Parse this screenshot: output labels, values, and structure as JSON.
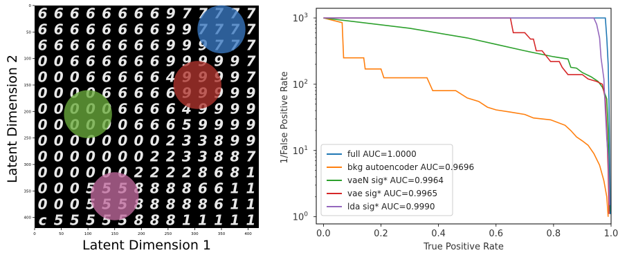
{
  "chart_data": [
    {
      "type": "scatter",
      "xlabel": "Latent Dimension 1",
      "ylabel": "Latent Dimension 2",
      "x_ticks": [
        0,
        50,
        100,
        150,
        200,
        250,
        300,
        350,
        400
      ],
      "y_ticks": [
        0,
        50,
        100,
        150,
        200,
        250,
        300,
        350,
        400
      ],
      "xlim": [
        0,
        420
      ],
      "ylim": [
        420,
        0
      ],
      "digit_grid": [
        [
          "6",
          "6",
          "6",
          "6",
          "6",
          "6",
          "6",
          "6",
          "9",
          "7",
          "7",
          "7",
          "7",
          "7"
        ],
        [
          "6",
          "6",
          "6",
          "6",
          "6",
          "6",
          "6",
          "6",
          "9",
          "9",
          "7",
          "7",
          "7",
          "7"
        ],
        [
          "6",
          "6",
          "6",
          "6",
          "6",
          "6",
          "6",
          "6",
          "9",
          "9",
          "9",
          "7",
          "7",
          "7"
        ],
        [
          "0",
          "0",
          "6",
          "6",
          "6",
          "6",
          "6",
          "6",
          "9",
          "9",
          "9",
          "9",
          "9",
          "7"
        ],
        [
          "0",
          "0",
          "0",
          "6",
          "6",
          "6",
          "6",
          "6",
          "4",
          "9",
          "9",
          "9",
          "9",
          "7"
        ],
        [
          "0",
          "0",
          "0",
          "0",
          "6",
          "6",
          "6",
          "6",
          "6",
          "9",
          "9",
          "9",
          "9",
          "9"
        ],
        [
          "0",
          "0",
          "0",
          "0",
          "0",
          "6",
          "6",
          "6",
          "6",
          "4",
          "9",
          "9",
          "9",
          "9"
        ],
        [
          "0",
          "0",
          "0",
          "0",
          "0",
          "0",
          "6",
          "6",
          "6",
          "5",
          "9",
          "9",
          "9",
          "9"
        ],
        [
          "0",
          "0",
          "0",
          "0",
          "0",
          "0",
          "0",
          "0",
          "2",
          "3",
          "3",
          "8",
          "9",
          "9"
        ],
        [
          "0",
          "0",
          "0",
          "0",
          "0",
          "0",
          "0",
          "2",
          "2",
          "3",
          "3",
          "8",
          "8",
          "7"
        ],
        [
          "0",
          "0",
          "0",
          "0",
          "0",
          "0",
          "2",
          "2",
          "2",
          "2",
          "8",
          "6",
          "8",
          "1"
        ],
        [
          "0",
          "0",
          "0",
          "5",
          "5",
          "5",
          "8",
          "8",
          "8",
          "8",
          "6",
          "6",
          "1",
          "1"
        ],
        [
          "0",
          "0",
          "0",
          "5",
          "5",
          "5",
          "8",
          "8",
          "8",
          "8",
          "8",
          "6",
          "1",
          "1"
        ],
        [
          "c",
          "5",
          "5",
          "5",
          "5",
          "5",
          "8",
          "8",
          "8",
          "1",
          "1",
          "1",
          "1",
          "1"
        ]
      ],
      "highlights": [
        {
          "color": "#3a78c2",
          "cx": 350,
          "cy": 45,
          "r": 45
        },
        {
          "color": "#b0352e",
          "cx": 305,
          "cy": 150,
          "r": 45
        },
        {
          "color": "#6aab3c",
          "cx": 100,
          "cy": 205,
          "r": 45
        },
        {
          "color": "#c06a9e",
          "cx": 150,
          "cy": 360,
          "r": 45
        }
      ]
    },
    {
      "type": "line",
      "xlabel": "True Positive Rate",
      "ylabel": "1/False Positive Rate",
      "xlim": [
        -0.025,
        1.0
      ],
      "ylim": [
        0.78,
        1400
      ],
      "yscale": "log",
      "x_ticks": [
        0.0,
        0.2,
        0.4,
        0.6,
        0.8,
        1.0
      ],
      "x_tick_labels": [
        "0.0",
        "0.2",
        "0.4",
        "0.6",
        "0.8",
        "1.0"
      ],
      "y_ticks": [
        1,
        10,
        100,
        1000
      ],
      "y_tick_labels": [
        [
          "10",
          "0"
        ],
        [
          "10",
          "1"
        ],
        [
          "10",
          "2"
        ],
        [
          "10",
          "3"
        ]
      ],
      "legend_placement": "lower-left",
      "series": [
        {
          "name": "full AUC=1.0000",
          "color": "#1f77b4",
          "points": [
            [
              0.0,
              1000
            ],
            [
              0.98,
              1000
            ],
            [
              0.985,
              500
            ],
            [
              0.99,
              200
            ],
            [
              0.993,
              50
            ],
            [
              0.995,
              10
            ],
            [
              0.997,
              1.1
            ]
          ]
        },
        {
          "name": "bkg autoencoder AUC=0.9696",
          "color": "#ff7f0e",
          "points": [
            [
              0.0,
              1000
            ],
            [
              0.065,
              850
            ],
            [
              0.07,
              250
            ],
            [
              0.14,
              250
            ],
            [
              0.145,
              170
            ],
            [
              0.2,
              170
            ],
            [
              0.21,
              125
            ],
            [
              0.36,
              125
            ],
            [
              0.38,
              80
            ],
            [
              0.46,
              80
            ],
            [
              0.5,
              62
            ],
            [
              0.54,
              55
            ],
            [
              0.57,
              45
            ],
            [
              0.6,
              41
            ],
            [
              0.65,
              38
            ],
            [
              0.7,
              35
            ],
            [
              0.73,
              31
            ],
            [
              0.79,
              29
            ],
            [
              0.84,
              24
            ],
            [
              0.86,
              20
            ],
            [
              0.88,
              16
            ],
            [
              0.9,
              14
            ],
            [
              0.92,
              12
            ],
            [
              0.94,
              9
            ],
            [
              0.96,
              6
            ],
            [
              0.975,
              3.5
            ],
            [
              0.985,
              2
            ],
            [
              0.99,
              1.0
            ]
          ]
        },
        {
          "name": "vaeN sig* AUC=0.9964",
          "color": "#2ca02c",
          "points": [
            [
              0.0,
              1000
            ],
            [
              0.3,
              700
            ],
            [
              0.5,
              500
            ],
            [
              0.6,
              400
            ],
            [
              0.7,
              320
            ],
            [
              0.8,
              260
            ],
            [
              0.85,
              240
            ],
            [
              0.86,
              180
            ],
            [
              0.88,
              175
            ],
            [
              0.9,
              150
            ],
            [
              0.93,
              130
            ],
            [
              0.955,
              110
            ],
            [
              0.97,
              90
            ],
            [
              0.985,
              60
            ],
            [
              0.99,
              20
            ],
            [
              0.995,
              1.2
            ]
          ]
        },
        {
          "name": "vae sig*  AUC=0.9965",
          "color": "#d62728",
          "points": [
            [
              0.0,
              1000
            ],
            [
              0.65,
              1000
            ],
            [
              0.66,
              600
            ],
            [
              0.7,
              600
            ],
            [
              0.72,
              480
            ],
            [
              0.73,
              480
            ],
            [
              0.74,
              320
            ],
            [
              0.76,
              320
            ],
            [
              0.79,
              220
            ],
            [
              0.82,
              220
            ],
            [
              0.83,
              180
            ],
            [
              0.85,
              140
            ],
            [
              0.9,
              140
            ],
            [
              0.92,
              120
            ],
            [
              0.95,
              110
            ],
            [
              0.97,
              100
            ],
            [
              0.98,
              60
            ],
            [
              0.985,
              20
            ],
            [
              0.99,
              5
            ],
            [
              0.993,
              1.1
            ]
          ]
        },
        {
          "name": "lda sig* AUC=0.9990",
          "color": "#9467bd",
          "points": [
            [
              0.0,
              1000
            ],
            [
              0.94,
              1000
            ],
            [
              0.95,
              800
            ],
            [
              0.96,
              500
            ],
            [
              0.965,
              250
            ],
            [
              0.975,
              120
            ],
            [
              0.98,
              40
            ],
            [
              0.985,
              15
            ],
            [
              0.99,
              8
            ],
            [
              0.995,
              1.5
            ]
          ]
        }
      ]
    }
  ]
}
